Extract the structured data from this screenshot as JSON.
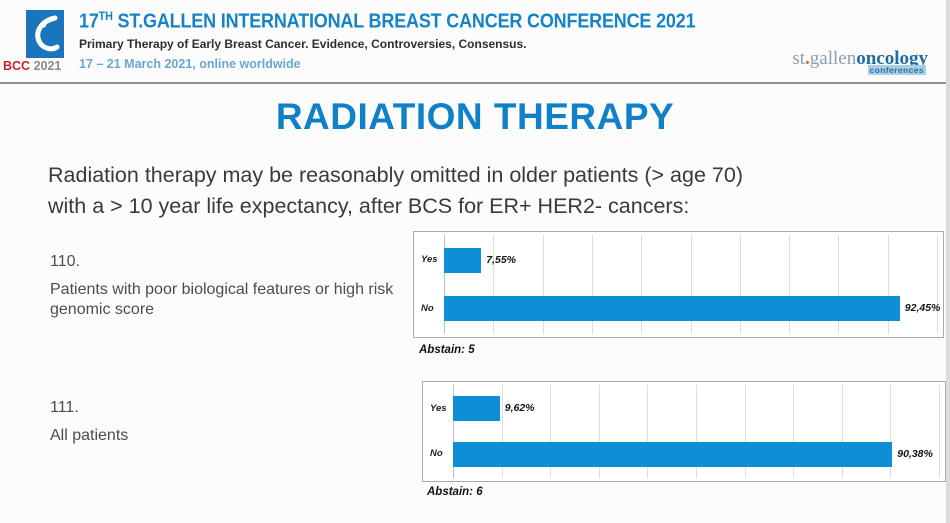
{
  "header": {
    "logo_bcc": "BCC",
    "logo_year": "2021",
    "title_num": "17",
    "title_sup": "TH",
    "title_rest": " ST.GALLEN INTERNATIONAL BREAST CANCER CONFERENCE 2021",
    "subtitle": "Primary Therapy of Early Breast Cancer. Evidence, Controversies, Consensus.",
    "date_line": "17 – 21 March 2021, online worldwide",
    "sg_logo": {
      "left": "st",
      "dot": ".",
      "mid": "gallen",
      "right": "oncology",
      "badge": "conferences"
    }
  },
  "slide_title": "RADIATION THERAPY",
  "question_intro": {
    "line1": "Radiation therapy may be reasonably omitted in older patients (> age 70)",
    "line2": "with a > 10 year life expectancy, after BCS for ER+ HER2- cancers:"
  },
  "chart_data": [
    {
      "type": "bar",
      "orientation": "horizontal",
      "question_number": "110.",
      "question_text": "Patients with poor biological features or high risk genomic score",
      "categories": [
        "Yes",
        "No"
      ],
      "values": [
        7.55,
        92.45
      ],
      "value_labels": [
        "7,55%",
        "92,45%"
      ],
      "abstain_label": "Abstain: 5",
      "xlim": [
        0,
        100
      ],
      "gridline_step_pct": 10,
      "grid": true,
      "legend": "none",
      "bar_color": "#0e8fd5"
    },
    {
      "type": "bar",
      "orientation": "horizontal",
      "question_number": "111.",
      "question_text": "All patients",
      "categories": [
        "Yes",
        "No"
      ],
      "values": [
        9.62,
        90.38
      ],
      "value_labels": [
        "9,62%",
        "90,38%"
      ],
      "abstain_label": "Abstain: 6",
      "xlim": [
        0,
        100
      ],
      "gridline_step_pct": 10,
      "grid": true,
      "legend": "none",
      "bar_color": "#0e8fd5"
    }
  ],
  "colors": {
    "accent_blue": "#1583c6",
    "slide_title_blue": "#1080c8",
    "bar_blue": "#0e8fd5",
    "date_blue": "#69a7d0",
    "logo_box_blue": "#1b75bc",
    "logo_red": "#c2272d",
    "stgallen_gray": "#8aa0b0",
    "stgallen_blue": "#1e6da3",
    "badge_bg": "#a9cfe7"
  }
}
